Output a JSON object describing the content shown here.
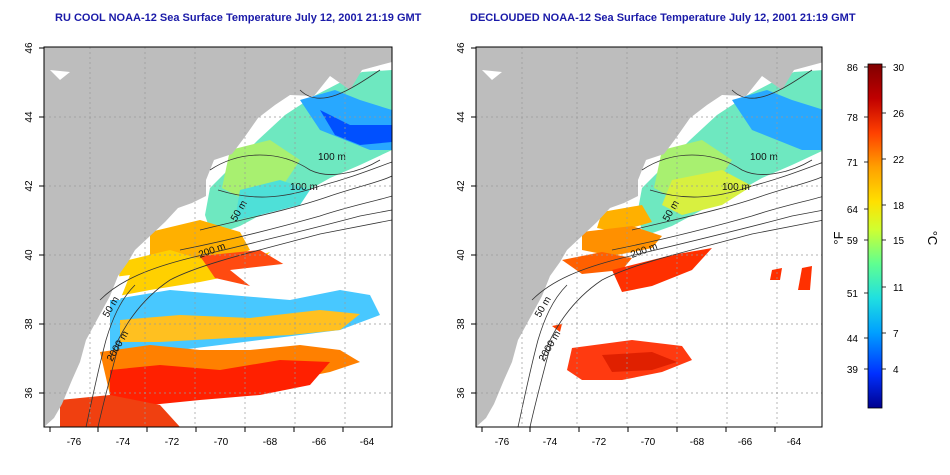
{
  "panels": [
    {
      "id": "left",
      "title": "RU COOL NOAA-12 Sea Surface Temperature July 12, 2001 21:19 GMT",
      "contour_labels": [
        "100 m",
        "100 m",
        "50 m",
        "200 m",
        "50 m",
        "2000 m"
      ]
    },
    {
      "id": "right",
      "title": "DECLOUDED NOAA-12 Sea Surface Temperature July 12, 2001 21:19 GMT",
      "contour_labels": [
        "100 m",
        "100 m",
        "50 m",
        "200 m",
        "50 m",
        "2000 m"
      ]
    }
  ],
  "axes": {
    "x_ticks": [
      "-76",
      "-74",
      "-72",
      "-70",
      "-68",
      "-66",
      "-64"
    ],
    "y_ticks": [
      "46",
      "44",
      "42",
      "40",
      "38",
      "36"
    ]
  },
  "colorbar": {
    "fahrenheit_ticks": [
      "86",
      "78",
      "71",
      "64",
      "59",
      "51",
      "44",
      "39"
    ],
    "celsius_ticks": [
      "30",
      "26",
      "22",
      "18",
      "15",
      "11",
      "7",
      "4"
    ],
    "label_f": "°F",
    "label_c": "°C",
    "colors": [
      "#00008f",
      "#0030ff",
      "#00a0ff",
      "#20e0e0",
      "#60ff90",
      "#d0ff30",
      "#ffe000",
      "#ffa000",
      "#ff4000",
      "#c00000",
      "#800000"
    ]
  },
  "colors": {
    "land": "#bdbdbd",
    "title": "#1a1aa8"
  }
}
